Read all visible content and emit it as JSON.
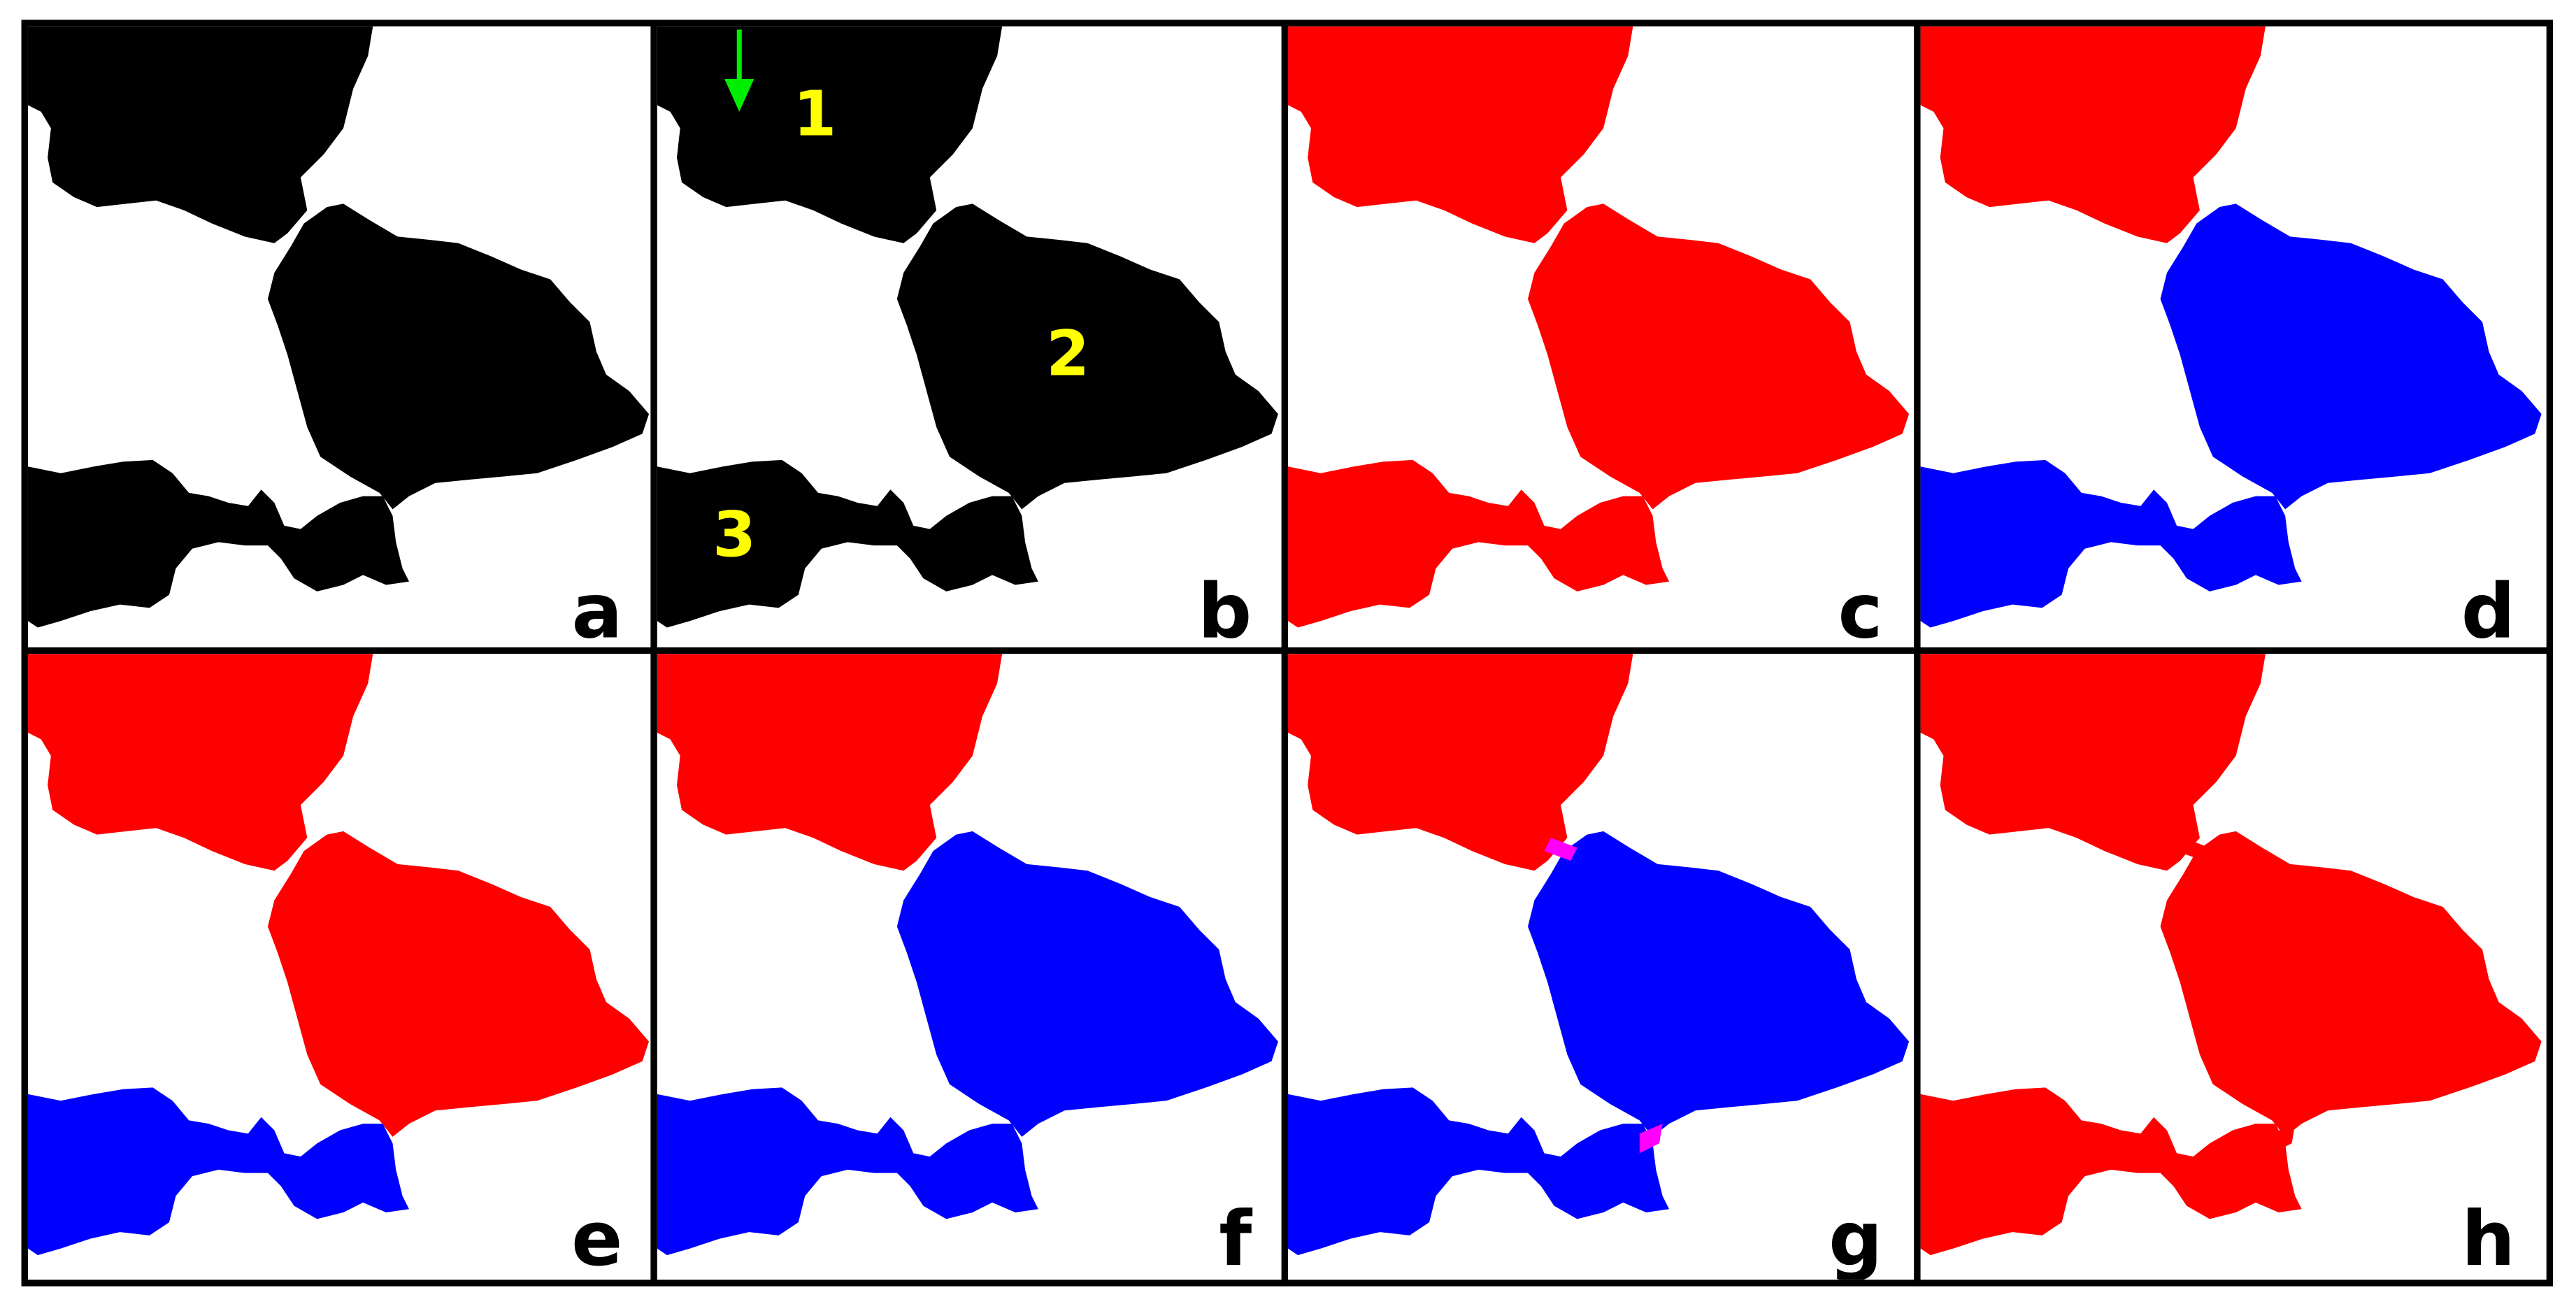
{
  "panels": [
    {
      "label": "a"
    },
    {
      "label": "b"
    },
    {
      "label": "c"
    },
    {
      "label": "d"
    },
    {
      "label": "e"
    },
    {
      "label": "f"
    },
    {
      "label": "g"
    },
    {
      "label": "h"
    }
  ],
  "region_labels": [
    "1",
    "2",
    "3"
  ]
}
